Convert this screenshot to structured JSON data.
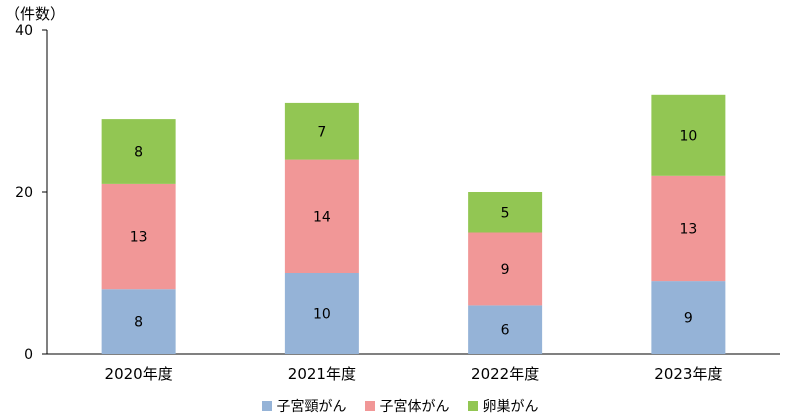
{
  "chart_data": {
    "type": "bar",
    "stacked": true,
    "ylabel": "（件数）",
    "ylim": [
      0,
      40
    ],
    "yticks": [
      0,
      20,
      40
    ],
    "categories": [
      "2020年度",
      "2021年度",
      "2022年度",
      "2023年度"
    ],
    "series": [
      {
        "name": "子宮頸がん",
        "color": "#95B3D7",
        "values": [
          8,
          10,
          6,
          9
        ]
      },
      {
        "name": "子宮体がん",
        "color": "#F19797",
        "values": [
          13,
          14,
          9,
          13
        ]
      },
      {
        "name": "卵巣がん",
        "color": "#92C653",
        "values": [
          8,
          7,
          5,
          10
        ]
      }
    ],
    "legend_position": "bottom",
    "grid": false
  }
}
